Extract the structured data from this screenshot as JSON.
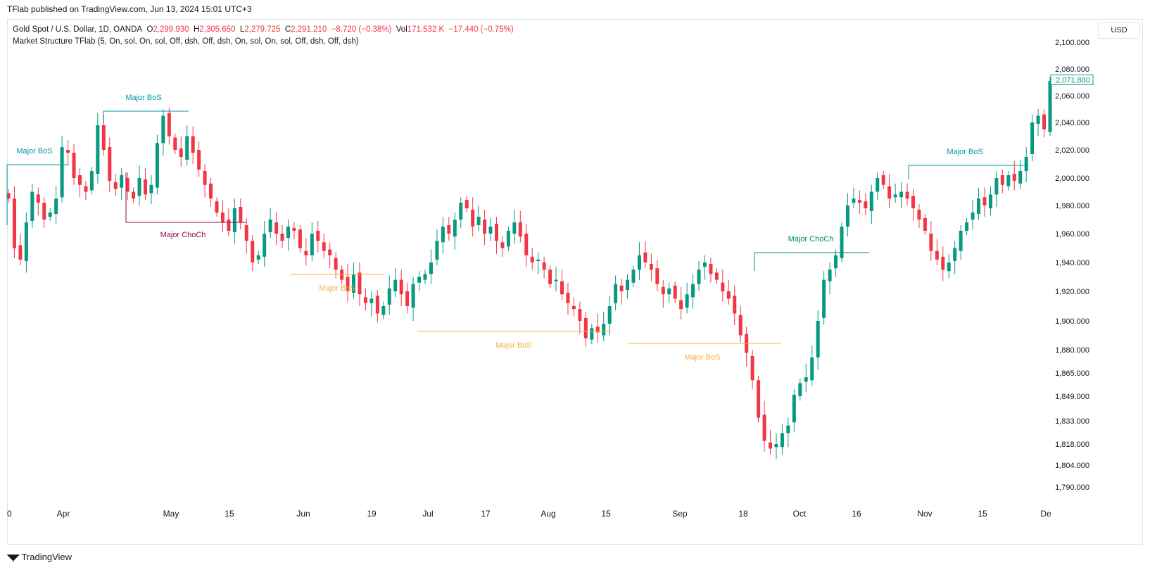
{
  "header": {
    "published": "TFlab published on TradingView.com, Jun 13, 2024 15:01 UTC+3"
  },
  "legend": {
    "symbol": "Gold Spot / U.S. Dollar, 1D, OANDA",
    "o_label": "O",
    "o_value": "2,299.930",
    "h_label": "H",
    "h_value": "2,305.650",
    "l_label": "L",
    "l_value": "2,279.725",
    "c_label": "C",
    "c_value": "2,291.210",
    "change": "−8.720 (−0.38%)",
    "vol_label": "Vol",
    "vol_value": "171.532 K",
    "vol_change": "−17.440 (−0.75%)",
    "indicator": "Market Structure TFlab (5, On, sol, On, sol, Off, dsh, Off, dsh, On, sol, On, sol, Off, dsh, Off, dsh)"
  },
  "currency": "USD",
  "footer": {
    "brand": "TradingView"
  },
  "colors": {
    "up": "#089981",
    "down": "#f23645",
    "bos_bull": "#0097a7",
    "choch_bear": "#880e4f",
    "bos_bear": "#f5b041",
    "choch_bull": "#00897b"
  },
  "chart_data": {
    "type": "candlestick",
    "y_ticks": [
      "2,100.000",
      "2,080.000",
      "2,060.000",
      "2,040.000",
      "2,020.000",
      "2,000.000",
      "1,980.000",
      "1,960.000",
      "1,940.000",
      "1,920.000",
      "1,900.000",
      "1,880.000",
      "1,865.000",
      "1,849.000",
      "1,833.000",
      "1,818.000",
      "1,804.000",
      "1,790.000"
    ],
    "x_ticks": [
      "0",
      "Apr",
      "May",
      "15",
      "Jun",
      "19",
      "Jul",
      "17",
      "Aug",
      "15",
      "Sep",
      "18",
      "Oct",
      "16",
      "Nov",
      "15",
      "De"
    ],
    "last_price": "2,071.880",
    "structure_labels": [
      {
        "text": "Major BoS",
        "kind": "bos_bull"
      },
      {
        "text": "Major BoS",
        "kind": "bos_bull"
      },
      {
        "text": "Major ChoCh",
        "kind": "choch_bear"
      },
      {
        "text": "Major BoS",
        "kind": "bos_bear"
      },
      {
        "text": "Major BoS",
        "kind": "bos_bear"
      },
      {
        "text": "Major BoS",
        "kind": "bos_bear"
      },
      {
        "text": "Major ChoCh",
        "kind": "choch_bull"
      },
      {
        "text": "Major BoS",
        "kind": "bos_bull"
      }
    ],
    "close_path": [
      1985,
      1950,
      1942,
      1968,
      1990,
      1982,
      1970,
      1975,
      1985,
      2022,
      2018,
      2000,
      1995,
      1990,
      2005,
      2038,
      2020,
      1998,
      1992,
      2002,
      1990,
      1985,
      2000,
      1988,
      1995,
      2025,
      2045,
      2030,
      2020,
      2015,
      2030,
      2018,
      2006,
      1995,
      1985,
      1975,
      1968,
      1962,
      1978,
      1968,
      1955,
      1940,
      1945,
      1960,
      1970,
      1960,
      1955,
      1965,
      1962,
      1950,
      1945,
      1960,
      1955,
      1948,
      1945,
      1935,
      1928,
      1920,
      1932,
      1918,
      1912,
      1915,
      1905,
      1910,
      1922,
      1928,
      1918,
      1910,
      1925,
      1930,
      1932,
      1940,
      1955,
      1965,
      1960,
      1970,
      1982,
      1978,
      1965,
      1972,
      1960,
      1965,
      1955,
      1950,
      1962,
      1968,
      1958,
      1945,
      1940,
      1942,
      1935,
      1925,
      1928,
      1918,
      1912,
      1908,
      1900,
      1888,
      1895,
      1892,
      1898,
      1910,
      1925,
      1920,
      1928,
      1935,
      1945,
      1940,
      1935,
      1925,
      1918,
      1922,
      1915,
      1908,
      1918,
      1925,
      1935,
      1940,
      1932,
      1928,
      1920,
      1915,
      1905,
      1890,
      1878,
      1860,
      1835,
      1820,
      1815,
      1818,
      1825,
      1830,
      1850,
      1858,
      1862,
      1875,
      1900,
      1928,
      1935,
      1945,
      1965,
      1980,
      1985,
      1982,
      1978,
      1990,
      2000,
      1995,
      1985,
      1988,
      1990,
      1985,
      1978,
      1970,
      1962,
      1948,
      1942,
      1935,
      1940,
      1950,
      1962,
      1968,
      1975,
      1985,
      1980,
      1988,
      2000,
      1995,
      2002,
      1998,
      2005,
      2015,
      2040,
      2045,
      2035,
      2071
    ]
  }
}
